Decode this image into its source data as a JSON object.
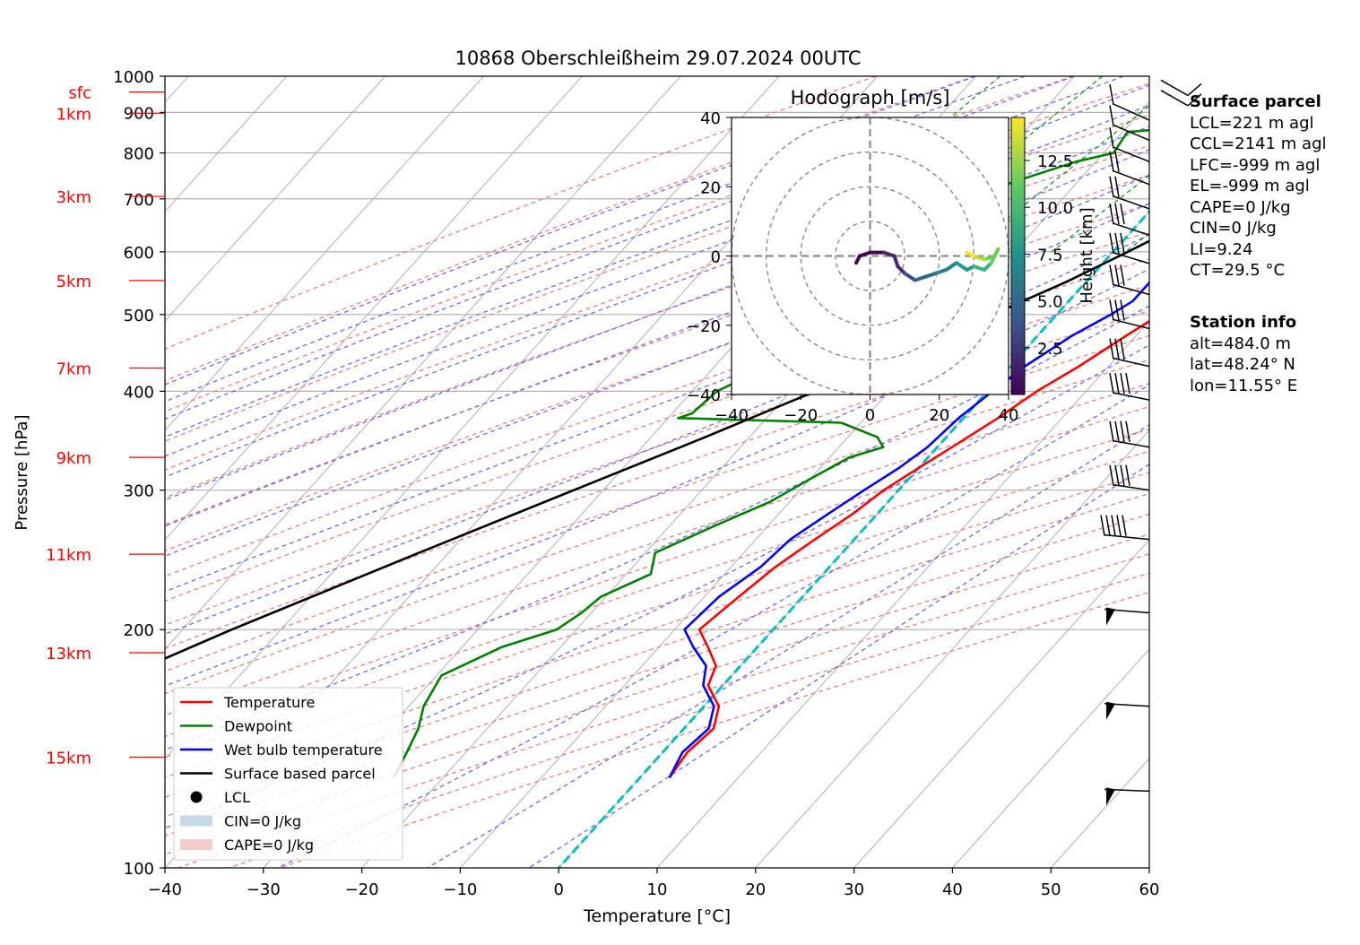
{
  "title": "10868 Oberschleißheim 29.07.2024 00UTC",
  "chart_data": {
    "type": "line",
    "xlabel": "Temperature [°C]",
    "ylabel": "Pressure [hPa]",
    "xlim": [
      -40,
      60
    ],
    "ylim": [
      1000,
      100
    ],
    "y_scale": "log",
    "x_ticks": [
      "−40",
      "−30",
      "−20",
      "−10",
      "0",
      "10",
      "20",
      "30",
      "40",
      "50",
      "60"
    ],
    "y_ticks": [
      {
        "p": 100,
        "label": "100"
      },
      {
        "p": 200,
        "label": "200"
      },
      {
        "p": 300,
        "label": "300"
      },
      {
        "p": 400,
        "label": "400"
      },
      {
        "p": 500,
        "label": "500"
      },
      {
        "p": 600,
        "label": "600"
      },
      {
        "p": 700,
        "label": "700"
      },
      {
        "p": 800,
        "label": "800"
      },
      {
        "p": 900,
        "label": "900"
      },
      {
        "p": 1000,
        "label": "1000"
      }
    ],
    "height_labels": [
      {
        "p": 955,
        "label": "sfc"
      },
      {
        "p": 898,
        "label": "1km"
      },
      {
        "p": 705,
        "label": "3km"
      },
      {
        "p": 552,
        "label": "5km"
      },
      {
        "p": 428,
        "label": "7km"
      },
      {
        "p": 330,
        "label": "9km"
      },
      {
        "p": 249,
        "label": "11km"
      },
      {
        "p": 187,
        "label": "13km"
      },
      {
        "p": 138,
        "label": "15km"
      }
    ],
    "grid": true,
    "legend_position": "bottom-left",
    "legend": [
      {
        "label": "Temperature",
        "color": "#ff0000"
      },
      {
        "label": "Dewpoint",
        "color": "#008000"
      },
      {
        "label": "Wet bulb temperature",
        "color": "#0000ff"
      },
      {
        "label": "Surface based parcel",
        "color": "#000000"
      },
      {
        "label": "LCL",
        "color": "#000000"
      },
      {
        "label": "CIN=0 J/kg",
        "color": "#c5d9e8"
      },
      {
        "label": "CAPE=0 J/kg",
        "color": "#f3cccc"
      }
    ],
    "series": [
      {
        "name": "Temperature",
        "color": "#ff0000",
        "points": [
          [
            955,
            14.8
          ],
          [
            950,
            21.5
          ],
          [
            930,
            18.5
          ],
          [
            900,
            17.3
          ],
          [
            880,
            18.0
          ],
          [
            850,
            17.8
          ],
          [
            800,
            18.5
          ],
          [
            760,
            17.5
          ],
          [
            700,
            16.5
          ],
          [
            650,
            17.0
          ],
          [
            620,
            16.3
          ],
          [
            600,
            15.5
          ],
          [
            580,
            14.5
          ],
          [
            560,
            13.5
          ],
          [
            540,
            13.0
          ],
          [
            520,
            12.5
          ],
          [
            500,
            10.5
          ],
          [
            470,
            9.0
          ],
          [
            430,
            7.0
          ],
          [
            400,
            5.0
          ],
          [
            370,
            3.5
          ],
          [
            340,
            1.5
          ],
          [
            320,
            0.0
          ],
          [
            300,
            -1.5
          ],
          [
            280,
            -2.5
          ],
          [
            260,
            -4.0
          ],
          [
            240,
            -5.5
          ],
          [
            220,
            -6.5
          ],
          [
            200,
            -7.5
          ],
          [
            190,
            -5.0
          ],
          [
            180,
            -2.5
          ],
          [
            170,
            -1.5
          ],
          [
            160,
            1.5
          ],
          [
            150,
            3.0
          ],
          [
            140,
            2.5
          ],
          [
            130,
            3.0
          ]
        ]
      },
      {
        "name": "Dewpoint",
        "color": "#008000",
        "points": [
          [
            958,
            14.5
          ],
          [
            955,
            9.0
          ],
          [
            950,
            11.0
          ],
          [
            945,
            8.5
          ],
          [
            935,
            11.0
          ],
          [
            920,
            12.0
          ],
          [
            900,
            13.0
          ],
          [
            880,
            8.0
          ],
          [
            870,
            -1.0
          ],
          [
            850,
            -9.5
          ],
          [
            800,
            -9.0
          ],
          [
            780,
            -12.0
          ],
          [
            750,
            -15.0
          ],
          [
            730,
            -17.0
          ],
          [
            700,
            -22.0
          ],
          [
            680,
            -24.0
          ],
          [
            650,
            -22.5
          ],
          [
            620,
            -17.0
          ],
          [
            600,
            -13.5
          ],
          [
            570,
            -12.0
          ],
          [
            550,
            -18.0
          ],
          [
            520,
            -17.0
          ],
          [
            500,
            -18.5
          ],
          [
            480,
            -19.0
          ],
          [
            450,
            -23.0
          ],
          [
            420,
            -25.5
          ],
          [
            400,
            -27.5
          ],
          [
            375,
            -28.0
          ],
          [
            370,
            -29.0
          ],
          [
            365,
            -12.0
          ],
          [
            350,
            -7.0
          ],
          [
            340,
            -5.5
          ],
          [
            330,
            -8.0
          ],
          [
            310,
            -10.0
          ],
          [
            290,
            -12.0
          ],
          [
            270,
            -15.5
          ],
          [
            250,
            -19.0
          ],
          [
            235,
            -17.5
          ],
          [
            220,
            -20.5
          ],
          [
            210,
            -21.0
          ],
          [
            200,
            -22.0
          ],
          [
            190,
            -26.0
          ],
          [
            175,
            -29.5
          ],
          [
            160,
            -28.5
          ],
          [
            150,
            -27.0
          ],
          [
            140,
            -26.0
          ],
          [
            130,
            -25.0
          ]
        ]
      },
      {
        "name": "Wet bulb temperature",
        "color": "#0000ff",
        "points": [
          [
            958,
            14.5
          ],
          [
            950,
            14.0
          ],
          [
            935,
            14.3
          ],
          [
            900,
            14.0
          ],
          [
            880,
            10.0
          ],
          [
            850,
            8.5
          ],
          [
            800,
            8.0
          ],
          [
            760,
            7.5
          ],
          [
            700,
            6.5
          ],
          [
            650,
            7.0
          ],
          [
            620,
            7.5
          ],
          [
            600,
            7.0
          ],
          [
            560,
            6.5
          ],
          [
            520,
            6.5
          ],
          [
            500,
            5.5
          ],
          [
            470,
            3.5
          ],
          [
            430,
            1.5
          ],
          [
            400,
            0.5
          ],
          [
            370,
            -0.5
          ],
          [
            340,
            -1.0
          ],
          [
            320,
            -2.0
          ],
          [
            300,
            -3.5
          ],
          [
            280,
            -5.0
          ],
          [
            260,
            -6.5
          ],
          [
            240,
            -7.0
          ],
          [
            220,
            -8.5
          ],
          [
            200,
            -9.0
          ],
          [
            190,
            -6.5
          ],
          [
            180,
            -3.5
          ],
          [
            170,
            -2.0
          ],
          [
            160,
            1.0
          ],
          [
            150,
            2.5
          ],
          [
            140,
            2.0
          ],
          [
            130,
            3.0
          ]
        ]
      },
      {
        "name": "Surface based parcel",
        "color": "#000000",
        "points": [
          [
            958,
            14.8
          ],
          [
            940,
            13.5
          ],
          [
            900,
            12.5
          ],
          [
            850,
            11.5
          ],
          [
            800,
            10.0
          ],
          [
            750,
            8.5
          ],
          [
            700,
            6.5
          ],
          [
            650,
            4.5
          ],
          [
            600,
            1.5
          ],
          [
            550,
            -2.0
          ],
          [
            500,
            -6.5
          ],
          [
            450,
            -11.5
          ],
          [
            400,
            -17.5
          ],
          [
            350,
            -24.5
          ],
          [
            300,
            -33.0
          ],
          [
            250,
            -43.0
          ],
          [
            200,
            -55.0
          ],
          [
            160,
            -66.0
          ],
          [
            130,
            -76.0
          ]
        ]
      }
    ],
    "lcl": {
      "p": 939,
      "t": 13.5
    },
    "hodograph": {
      "title": "Hodograph [m/s]",
      "xlim": [
        -40,
        40
      ],
      "ylim": [
        -40,
        40
      ],
      "ticks": [
        "−40",
        "−20",
        "0",
        "20",
        "40"
      ],
      "colorbar_label": "Height [km]",
      "colorbar_ticks": [
        "2.5",
        "5.0",
        "7.5",
        "10.0",
        "12.5"
      ],
      "points": [
        [
          -4,
          -2,
          0.2
        ],
        [
          -3,
          0,
          0.5
        ],
        [
          0,
          1,
          1.0
        ],
        [
          4,
          1,
          1.6
        ],
        [
          7,
          0,
          2.2
        ],
        [
          8,
          -3,
          2.8
        ],
        [
          10,
          -5,
          3.6
        ],
        [
          13,
          -7,
          4.4
        ],
        [
          16,
          -6,
          5.2
        ],
        [
          19,
          -5,
          6.0
        ],
        [
          22,
          -4,
          6.8
        ],
        [
          25,
          -2,
          7.6
        ],
        [
          28,
          -4,
          8.4
        ],
        [
          30,
          -3,
          9.2
        ],
        [
          33,
          -4,
          9.8
        ],
        [
          35,
          -2,
          10.4
        ],
        [
          37,
          2,
          11.0
        ],
        [
          36,
          0,
          11.6
        ],
        [
          33,
          -1,
          12.2
        ],
        [
          30,
          0,
          12.8
        ],
        [
          28,
          1,
          13.4
        ],
        [
          30,
          0,
          14.0
        ]
      ]
    }
  },
  "surface_parcel": {
    "heading": "Surface parcel",
    "lines": [
      "LCL=221 m agl",
      "CCL=2141 m agl",
      "LFC=-999 m agl",
      "EL=-999 m agl",
      "CAPE=0 J/kg",
      "CIN=0 J/kg",
      "LI=9.24",
      "CT=29.5 °C"
    ]
  },
  "station_info": {
    "heading": "Station info",
    "lines": [
      "alt=484.0 m",
      "lat=48.24° N",
      "lon=11.55° E"
    ]
  }
}
